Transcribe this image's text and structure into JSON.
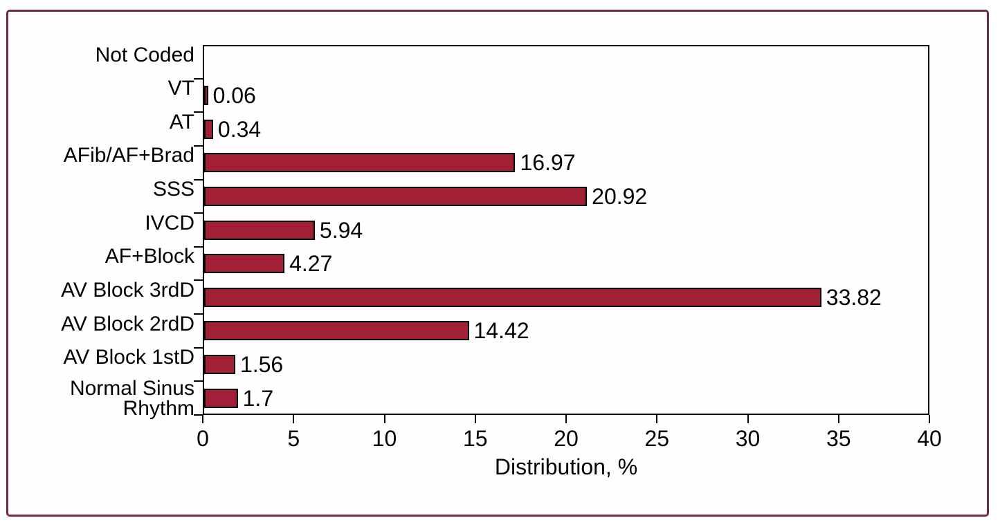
{
  "figure": {
    "frame_border_color": "#6e2d3f",
    "background_color": "#ffffff"
  },
  "chart_data": {
    "type": "bar",
    "orientation": "horizontal",
    "title": "",
    "xlabel": "Distribution, %",
    "ylabel": "",
    "xlim": [
      0,
      40
    ],
    "x_ticks": [
      0,
      5,
      10,
      15,
      20,
      25,
      30,
      35,
      40
    ],
    "grid": false,
    "legend": null,
    "bar_color": "#a12035",
    "bar_border_color": "#000000",
    "categories": [
      "Not Coded",
      "VT",
      "AT",
      "AFib/AF+Brad",
      "SSS",
      "IVCD",
      "AF+Block",
      "AV Block 3rdD",
      "AV Block 2rdD",
      "AV Block 1stD",
      "Normal Sinus\nRhythm"
    ],
    "values": [
      null,
      0.06,
      0.34,
      16.97,
      20.92,
      5.94,
      4.27,
      33.82,
      14.42,
      1.56,
      1.7
    ],
    "value_labels": [
      "",
      "0.06",
      "0.34",
      "16.97",
      "20.92",
      "5.94",
      "4.27",
      "33.82",
      "14.42",
      "1.56",
      "1.7"
    ]
  }
}
